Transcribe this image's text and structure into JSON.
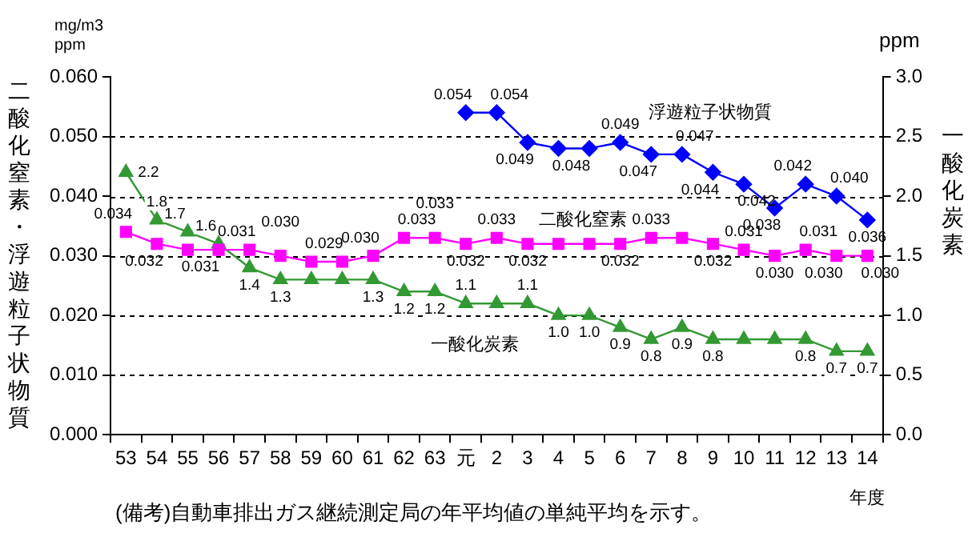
{
  "chart_data": {
    "type": "line",
    "ylabel": "二酸化窒素・浮遊粒子状物質",
    "y2label": "一酸化炭素",
    "xlabel": "年度",
    "categories": [
      "53",
      "54",
      "55",
      "56",
      "57",
      "58",
      "59",
      "60",
      "61",
      "62",
      "63",
      "元",
      "2",
      "3",
      "4",
      "5",
      "6",
      "7",
      "8",
      "9",
      "10",
      "11",
      "12",
      "13",
      "14"
    ],
    "series": [
      {
        "name": "浮遊粒子状物質",
        "color": "#0000ff",
        "marker": "diamond",
        "values": [
          null,
          null,
          null,
          null,
          null,
          null,
          null,
          null,
          null,
          null,
          null,
          0.054,
          0.054,
          0.049,
          0.048,
          0.048,
          0.049,
          0.047,
          0.047,
          0.044,
          0.042,
          0.038,
          0.042,
          0.04,
          0.036
        ],
        "value_labels": [
          null,
          null,
          null,
          null,
          null,
          null,
          null,
          null,
          null,
          null,
          null,
          "0.054",
          "0.054",
          "0.049",
          "0.048",
          null,
          "0.049",
          "0.047",
          "0.047",
          "0.044",
          "0.042",
          "0.038",
          "0.042",
          "0.040",
          "0.036"
        ]
      },
      {
        "name": "二酸化窒素",
        "color": "#ff00ff",
        "marker": "square",
        "values": [
          0.034,
          0.032,
          0.031,
          0.031,
          0.031,
          0.03,
          0.029,
          0.029,
          0.03,
          0.033,
          0.033,
          0.032,
          0.033,
          0.032,
          0.032,
          0.032,
          0.032,
          0.033,
          0.033,
          0.032,
          0.031,
          0.03,
          0.031,
          0.03,
          0.03
        ],
        "value_labels": [
          "0.034",
          "0.032",
          "0.031",
          null,
          "0.031",
          "0.030",
          "0.029",
          null,
          "0.030",
          "0.033",
          "0.033",
          "0.032",
          "0.033",
          "0.032",
          null,
          null,
          "0.032",
          "0.033",
          null,
          "0.032",
          "0.031",
          "0.030",
          "0.031",
          "0.030",
          "0.030"
        ]
      },
      {
        "name": "一酸化炭素",
        "color": "#339933",
        "marker": "triangle",
        "axis": "y2",
        "values": [
          2.2,
          1.8,
          1.7,
          1.6,
          1.4,
          1.3,
          1.3,
          1.3,
          1.3,
          1.2,
          1.2,
          1.1,
          1.1,
          1.1,
          1.0,
          1.0,
          0.9,
          0.8,
          0.9,
          0.8,
          0.8,
          0.8,
          0.8,
          0.7,
          0.7
        ],
        "value_labels": [
          "2.2",
          "1.8",
          "1.7",
          "1.6",
          "1.4",
          "1.3",
          null,
          null,
          "1.3",
          "1.2",
          "1.2",
          "1.1",
          null,
          "1.1",
          "1.0",
          "1.0",
          "0.9",
          "0.8",
          "0.9",
          "0.8",
          null,
          null,
          "0.8",
          "0.7",
          "0.7"
        ]
      }
    ],
    "ylim": [
      0,
      0.06
    ],
    "yticks": [
      {
        "value": 0,
        "label": "0.000"
      },
      {
        "value": 0.01,
        "label": "0.010"
      },
      {
        "value": 0.02,
        "label": "0.020"
      },
      {
        "value": 0.03,
        "label": "0.030"
      },
      {
        "value": 0.04,
        "label": "0.040"
      },
      {
        "value": 0.05,
        "label": "0.050"
      },
      {
        "value": 0.06,
        "label": "0.060"
      }
    ],
    "y2lim": [
      0,
      3
    ],
    "y2ticks": [
      {
        "value": 0,
        "label": "0.0"
      },
      {
        "value": 0.5,
        "label": "0.5"
      },
      {
        "value": 1,
        "label": "1.0"
      },
      {
        "value": 1.5,
        "label": "1.5"
      },
      {
        "value": 2,
        "label": "2.0"
      },
      {
        "value": 2.5,
        "label": "2.5"
      },
      {
        "value": 3,
        "label": "3.0"
      }
    ],
    "grid": "y",
    "legend": false,
    "annotations": [
      "mg/m3",
      "ppm",
      "ppm",
      "(備考)自動車排出ガス継続測定局の年平均値の単純平均を示す。"
    ]
  }
}
